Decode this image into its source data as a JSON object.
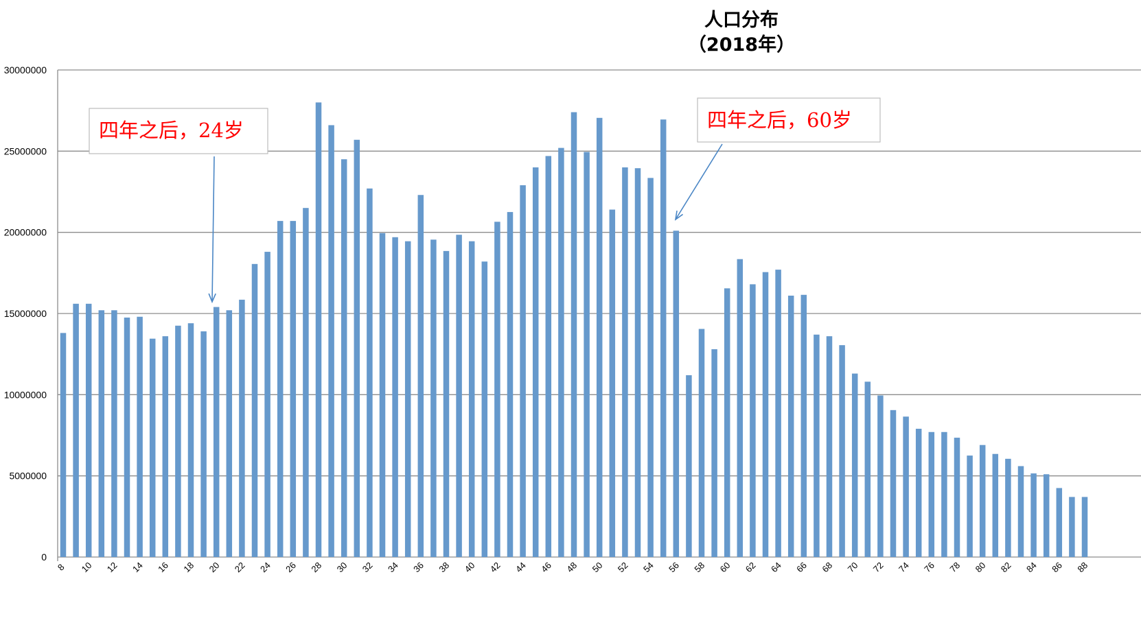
{
  "chart_data": {
    "type": "bar",
    "title": "人口分布",
    "subtitle": "（2018年）",
    "xlabel": "",
    "ylabel": "",
    "ylim": [
      0,
      30000000
    ],
    "yticks": [
      "0",
      "5000000",
      "10000000",
      "15000000",
      "20000000",
      "25000000",
      "30000000"
    ],
    "grid": true,
    "legend": "none",
    "bar_color": "#6699cc",
    "categories": [
      8,
      9,
      10,
      11,
      12,
      13,
      14,
      15,
      16,
      17,
      18,
      19,
      20,
      21,
      22,
      23,
      24,
      25,
      26,
      27,
      28,
      29,
      30,
      31,
      32,
      33,
      34,
      35,
      36,
      37,
      38,
      39,
      40,
      41,
      42,
      43,
      44,
      45,
      46,
      47,
      48,
      49,
      50,
      51,
      52,
      53,
      54,
      55,
      56,
      57,
      58,
      59,
      60,
      61,
      62,
      63,
      64,
      65,
      66,
      67,
      68,
      69,
      70,
      71,
      72,
      73,
      74,
      75,
      76,
      77,
      78,
      79,
      80,
      81,
      82,
      83,
      84,
      85,
      86,
      87,
      88
    ],
    "xtick_labels": [
      "8",
      "10",
      "12",
      "14",
      "16",
      "18",
      "20",
      "22",
      "24",
      "26",
      "28",
      "30",
      "32",
      "34",
      "36",
      "38",
      "40",
      "42",
      "44",
      "46",
      "48",
      "50",
      "52",
      "54",
      "56",
      "58",
      "60",
      "62",
      "64",
      "66",
      "68",
      "70",
      "72",
      "74",
      "76",
      "78",
      "80",
      "82",
      "84",
      "86",
      "88"
    ],
    "values": [
      13800000,
      15600000,
      15600000,
      15200000,
      15200000,
      14750000,
      14800000,
      13450000,
      13600000,
      14250000,
      14400000,
      13900000,
      15400000,
      15200000,
      15850000,
      18050000,
      18800000,
      20700000,
      20700000,
      21500000,
      28000000,
      26600000,
      24500000,
      25700000,
      22700000,
      19950000,
      19700000,
      19450000,
      22300000,
      19550000,
      18850000,
      19850000,
      19450000,
      18200000,
      20650000,
      21250000,
      22900000,
      24000000,
      24700000,
      25200000,
      27400000,
      24950000,
      27050000,
      21400000,
      24000000,
      23950000,
      23350000,
      26950000,
      20100000,
      11200000,
      14050000,
      12800000,
      16550000,
      18350000,
      16800000,
      17550000,
      17700000,
      16100000,
      16150000,
      13700000,
      13600000,
      13050000,
      11300000,
      10800000,
      9950000,
      9050000,
      8650000,
      7900000,
      7700000,
      7700000,
      7350000,
      6250000,
      6900000,
      6350000,
      6050000,
      5600000,
      5150000,
      5100000,
      4250000,
      3700000,
      3700000
    ],
    "annotations": [
      {
        "text": "四年之后，24岁",
        "target_age": 20
      },
      {
        "text": "四年之后，60岁",
        "target_age": 56
      }
    ],
    "annotation_color": "#ff0000",
    "arrow_color": "#4a86c5"
  }
}
